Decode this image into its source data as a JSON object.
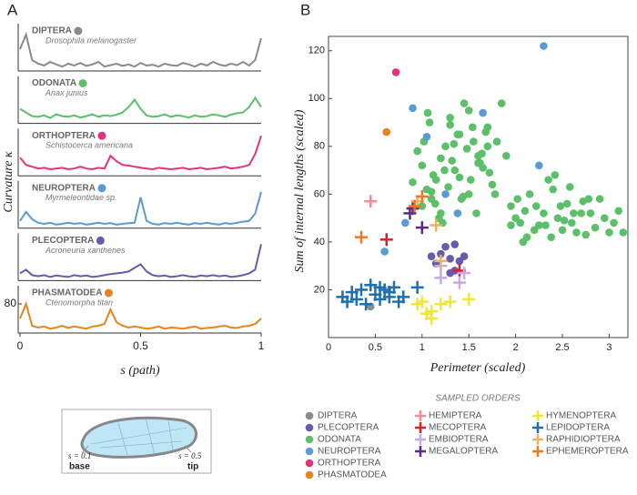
{
  "chart_data": [
    {
      "type": "line",
      "panel": "A",
      "ylabel": "Curvature κ",
      "xlabel": "s (path)",
      "xlim": [
        0,
        1
      ],
      "xticks": [
        0,
        0.5,
        1
      ],
      "ylim": [
        0,
        130
      ],
      "yticks": [
        80
      ],
      "x": [
        0,
        0.025,
        0.05,
        0.075,
        0.1,
        0.125,
        0.15,
        0.175,
        0.2,
        0.225,
        0.25,
        0.275,
        0.3,
        0.325,
        0.35,
        0.375,
        0.4,
        0.425,
        0.45,
        0.475,
        0.5,
        0.525,
        0.55,
        0.575,
        0.6,
        0.625,
        0.65,
        0.675,
        0.7,
        0.725,
        0.75,
        0.775,
        0.8,
        0.825,
        0.85,
        0.875,
        0.9,
        0.925,
        0.95,
        0.975,
        1
      ],
      "series": [
        {
          "name": "DIPTERA",
          "species": "Drosophila melanogaster",
          "color": "#8a8a8a",
          "values": [
            60,
            100,
            30,
            20,
            15,
            25,
            18,
            12,
            20,
            15,
            22,
            14,
            18,
            25,
            12,
            16,
            20,
            14,
            18,
            12,
            22,
            15,
            17,
            12,
            20,
            16,
            14,
            22,
            18,
            12,
            20,
            15,
            25,
            18,
            14,
            20,
            16,
            25,
            15,
            30,
            90
          ]
        },
        {
          "name": "ODONATA",
          "species": "Anax junius",
          "color": "#5cbf6a",
          "values": [
            40,
            30,
            20,
            18,
            22,
            15,
            25,
            20,
            18,
            22,
            16,
            20,
            25,
            18,
            22,
            20,
            24,
            30,
            45,
            65,
            40,
            22,
            18,
            20,
            25,
            18,
            22,
            20,
            16,
            22,
            18,
            20,
            25,
            22,
            18,
            24,
            28,
            30,
            45,
            70,
            45
          ]
        },
        {
          "name": "ORTHOPTERA",
          "species": "Schistocerca americana",
          "color": "#e0357a",
          "values": [
            50,
            30,
            25,
            20,
            22,
            18,
            20,
            22,
            18,
            20,
            25,
            20,
            18,
            22,
            20,
            55,
            40,
            30,
            28,
            25,
            22,
            20,
            18,
            22,
            20,
            18,
            20,
            22,
            18,
            20,
            22,
            18,
            20,
            22,
            25,
            20,
            22,
            25,
            30,
            60,
            110
          ]
        },
        {
          "name": "NEUROPTERA",
          "species": "Myrmeleontidae sp.",
          "color": "#5b9bd5",
          "values": [
            20,
            45,
            25,
            15,
            12,
            15,
            10,
            12,
            15,
            12,
            14,
            10,
            12,
            15,
            12,
            14,
            10,
            12,
            14,
            15,
            85,
            20,
            12,
            10,
            14,
            12,
            15,
            12,
            10,
            14,
            12,
            15,
            12,
            10,
            14,
            12,
            15,
            18,
            20,
            40,
            100
          ]
        },
        {
          "name": "PLECOPTERA",
          "species": "Acroneuria xanthenes",
          "color": "#6a5aad",
          "values": [
            20,
            30,
            15,
            12,
            15,
            10,
            14,
            12,
            10,
            15,
            12,
            14,
            10,
            12,
            15,
            18,
            20,
            22,
            25,
            35,
            45,
            25,
            15,
            12,
            14,
            10,
            12,
            15,
            12,
            10,
            14,
            12,
            15,
            12,
            14,
            10,
            12,
            15,
            20,
            30,
            100
          ]
        },
        {
          "name": "PHASMATODEA",
          "species": "Ctenomorpha titan",
          "color": "#e8841d",
          "values": [
            40,
            80,
            20,
            15,
            18,
            12,
            15,
            20,
            14,
            18,
            15,
            12,
            18,
            20,
            25,
            65,
            30,
            20,
            15,
            18,
            15,
            12,
            14,
            18,
            12,
            15,
            14,
            12,
            15,
            18,
            12,
            14,
            15,
            18,
            20,
            15,
            14,
            18,
            20,
            25,
            40
          ]
        }
      ]
    },
    {
      "type": "scatter",
      "panel": "B",
      "xlabel": "Perimeter (scaled)",
      "ylabel": "Sum of internal lengths (scaled)",
      "legend_title": "SAMPLED ORDERS",
      "xlim": [
        0,
        3.2
      ],
      "xticks": [
        0,
        0.5,
        1,
        1.5,
        2,
        2.5,
        3
      ],
      "ylim": [
        0,
        126
      ],
      "yticks": [
        20,
        40,
        60,
        80,
        100,
        120
      ],
      "series": [
        {
          "name": "DIPTERA",
          "color": "#8a8a8a",
          "marker": "circle",
          "x": [
            0.45
          ],
          "y": [
            13
          ]
        },
        {
          "name": "PLECOPTERA",
          "color": "#6a5aad",
          "marker": "circle",
          "x": [
            1.25,
            1.35,
            1.2,
            1.1,
            1.3,
            1.4,
            1.45,
            1.15,
            1.3,
            1.35
          ],
          "y": [
            38,
            39,
            35,
            34,
            33,
            32,
            34,
            31,
            27,
            28
          ]
        },
        {
          "name": "ODONATA",
          "color": "#5cbf6a",
          "marker": "circle",
          "x": [
            0.95,
            1.0,
            1.05,
            1.1,
            1.15,
            1.2,
            1.25,
            1.3,
            1.35,
            1.4,
            1.45,
            1.5,
            1.55,
            1.6,
            1.65,
            1.7,
            1.75,
            1.8,
            1.85,
            0.9,
            1.0,
            1.08,
            1.12,
            1.18,
            1.22,
            1.28,
            1.32,
            1.38,
            1.42,
            1.48,
            1.52,
            1.58,
            1.62,
            1.68,
            1.72,
            1.78,
            1.02,
            1.06,
            1.14,
            1.24,
            1.34,
            1.44,
            1.54,
            1.64,
            1.1,
            1.2,
            1.3,
            1.4,
            1.5,
            1.6,
            1.7,
            1.9,
            1.95,
            2.0,
            2.05,
            2.1,
            2.15,
            2.2,
            2.25,
            2.3,
            2.35,
            2.4,
            2.45,
            2.5,
            2.55,
            2.6,
            2.65,
            2.7,
            2.75,
            2.8,
            2.85,
            2.9,
            2.95,
            3.0,
            3.05,
            3.1,
            3.15,
            2.02,
            2.12,
            2.22,
            2.32,
            2.42,
            2.52,
            2.62,
            2.72,
            2.08,
            2.38,
            2.58,
            2.78,
            1.95,
            2.48
          ],
          "y": [
            78,
            72,
            62,
            58,
            66,
            75,
            80,
            92,
            70,
            85,
            98,
            60,
            82,
            76,
            71,
            88,
            64,
            82,
            98,
            65,
            55,
            90,
            68,
            50,
            48,
            63,
            74,
            85,
            58,
            79,
            66,
            52,
            73,
            86,
            69,
            60,
            82,
            94,
            56,
            70,
            81,
            59,
            88,
            77,
            61,
            52,
            89,
            67,
            95,
            73,
            80,
            76,
            55,
            50,
            48,
            53,
            60,
            45,
            47,
            52,
            66,
            62,
            50,
            45,
            56,
            48,
            44,
            52,
            43,
            52,
            46,
            58,
            50,
            44,
            48,
            53,
            44,
            58,
            42,
            55,
            47,
            68,
            49,
            52,
            57,
            40,
            42,
            63,
            58,
            47,
            55
          ]
        },
        {
          "name": "NEUROPTERA",
          "color": "#5b9bd5",
          "marker": "circle",
          "x": [
            2.3,
            0.9,
            1.65,
            1.05,
            2.25,
            0.82,
            1.38,
            1.25,
            0.6
          ],
          "y": [
            122,
            96,
            94,
            84,
            72,
            48,
            52,
            60,
            36
          ]
        },
        {
          "name": "ORTHOPTERA",
          "color": "#e0357a",
          "marker": "circle",
          "x": [
            0.72
          ],
          "y": [
            111
          ]
        },
        {
          "name": "PHASMATODEA",
          "color": "#e8841d",
          "marker": "circle",
          "x": [
            0.62
          ],
          "y": [
            86
          ]
        },
        {
          "name": "HEMIPTERA",
          "color": "#f08c9a",
          "marker": "plus",
          "x": [
            0.45
          ],
          "y": [
            57
          ]
        },
        {
          "name": "MECOPTERA",
          "color": "#d4242a",
          "marker": "plus",
          "x": [
            0.62,
            1.4
          ],
          "y": [
            41,
            28
          ]
        },
        {
          "name": "EMBIOPTERA",
          "color": "#c8a9e0",
          "marker": "plus",
          "x": [
            1.2,
            1.4,
            1.45,
            1.2
          ],
          "y": [
            25,
            23,
            27,
            30
          ]
        },
        {
          "name": "MEGALOPTERA",
          "color": "#5b2a86",
          "marker": "plus",
          "x": [
            0.9,
            1.0,
            0.87
          ],
          "y": [
            54,
            46,
            52
          ]
        },
        {
          "name": "HYMENOPTERA",
          "color": "#f0e53a",
          "marker": "plus",
          "x": [
            0.95,
            1.05,
            1.1,
            1.2,
            1.3,
            1.5,
            1.0,
            1.1
          ],
          "y": [
            14,
            10,
            8,
            14,
            15,
            16,
            15,
            11
          ]
        },
        {
          "name": "LEPIDOPTERA",
          "color": "#1f6fad",
          "marker": "plus",
          "x": [
            0.15,
            0.25,
            0.3,
            0.35,
            0.4,
            0.45,
            0.5,
            0.55,
            0.6,
            0.65,
            0.7,
            0.75,
            0.8,
            0.95,
            0.55,
            0.2,
            0.65
          ],
          "y": [
            17,
            19,
            16,
            20,
            14,
            22,
            18,
            16,
            20,
            19,
            21,
            15,
            17,
            21,
            21,
            15,
            17
          ]
        },
        {
          "name": "RAPHIDIOPTERA",
          "color": "#f0b060",
          "marker": "plus",
          "x": [
            0.95,
            1.15,
            1.2
          ],
          "y": [
            57,
            47,
            32
          ]
        },
        {
          "name": "EPHEMEROPTERA",
          "color": "#f07822",
          "marker": "plus",
          "x": [
            0.35,
            0.92,
            1.0
          ],
          "y": [
            42,
            55,
            59
          ]
        }
      ]
    }
  ],
  "inset": {
    "base_s": "s = 0.1",
    "base": "base",
    "tip_s": "s = 0.5",
    "tip": "tip"
  }
}
